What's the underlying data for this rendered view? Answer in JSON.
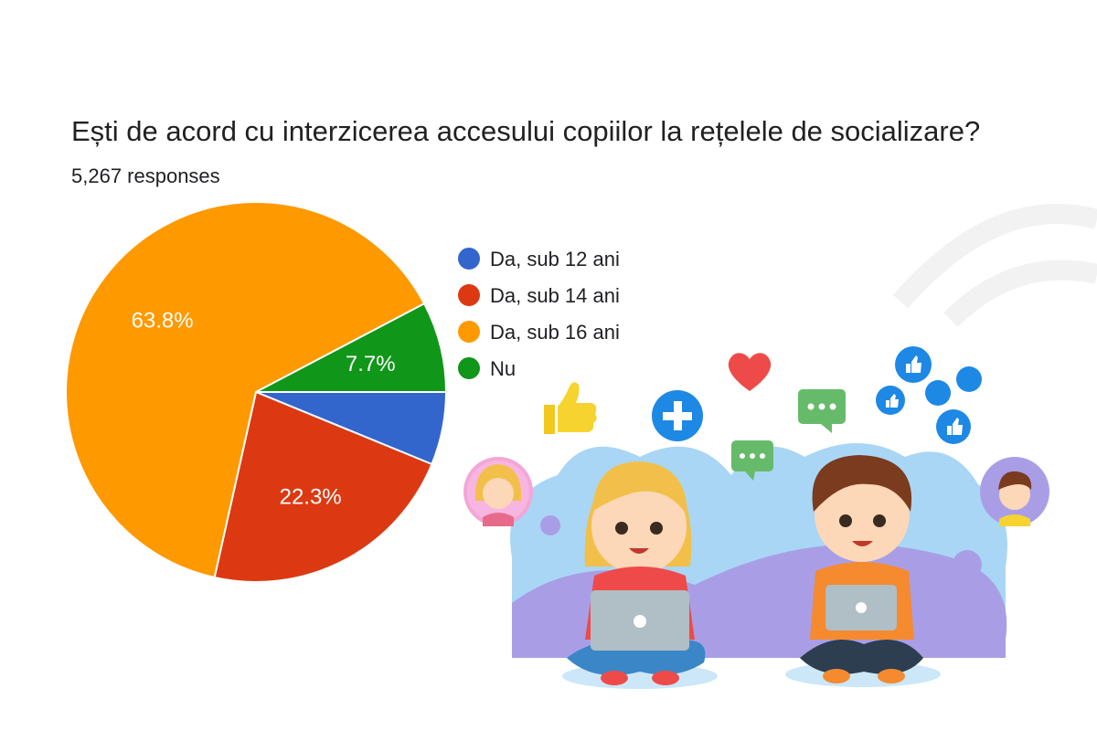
{
  "chart_data": {
    "type": "pie",
    "title": "Ești de acord cu interzicerea accesului copiilor la rețelele de socializare?",
    "subtitle": "5,267 responses",
    "series": [
      {
        "name": "Da, sub 12 ani",
        "value": 6.2,
        "label": "",
        "color": "#3366cc"
      },
      {
        "name": "Da, sub 14 ani",
        "value": 22.3,
        "label": "22.3%",
        "color": "#dc3912"
      },
      {
        "name": "Da, sub 16 ani",
        "value": 63.8,
        "label": "63.8%",
        "color": "#ff9900"
      },
      {
        "name": "Nu",
        "value": 7.7,
        "label": "7.7%",
        "color": "#109618"
      }
    ],
    "legend_position": "right"
  },
  "illustration": {
    "description_icons": [
      "thumbs-up-icon",
      "plus-icon",
      "heart-icon",
      "chat-bubble-icon",
      "like-icon"
    ]
  }
}
